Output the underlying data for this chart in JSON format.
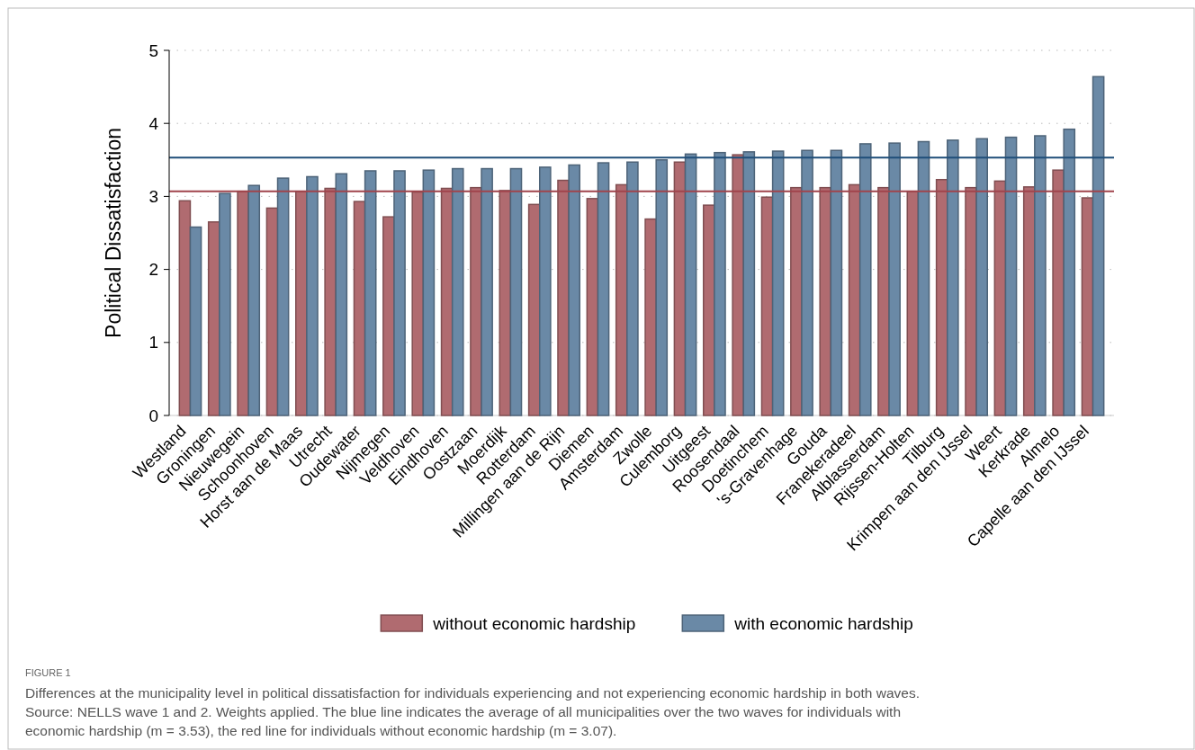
{
  "chart_data": {
    "type": "bar",
    "title": "FIGURE 1",
    "ylabel": "Political Dissatisfaction",
    "categories": [
      "Westland",
      "Groningen",
      "Nieuwegein",
      "Schoonhoven",
      "Horst aan de Maas",
      "Utrecht",
      "Oudewater",
      "Nijmegen",
      "Veldhoven",
      "Eindhoven",
      "Oostzaan",
      "Moerdijk",
      "Rotterdam",
      "Millingen aan de Rijn",
      "Diemen",
      "Amsterdam",
      "Zwolle",
      "Culemborg",
      "Uitgeest",
      "Roosendaal",
      "Doetinchem",
      "'s-Gravenhage",
      "Gouda",
      "Franekeradeel",
      "Alblasserdam",
      "Rijssen-Holten",
      "Tilburg",
      "Krimpen aan den IJssel",
      "Weert",
      "Kerkrade",
      "Almelo",
      "Capelle aan den IJssel"
    ],
    "series": [
      {
        "name": "without economic hardship",
        "color": "#b06b70",
        "values": [
          2.94,
          2.65,
          3.07,
          2.84,
          3.07,
          3.11,
          2.93,
          2.72,
          3.06,
          3.11,
          3.12,
          3.08,
          2.89,
          3.22,
          2.97,
          3.16,
          2.69,
          3.47,
          2.88,
          3.57,
          2.99,
          3.12,
          3.12,
          3.16,
          3.12,
          3.07,
          3.23,
          3.12,
          3.21,
          3.13,
          3.36,
          2.98
        ]
      },
      {
        "name": "with economic hardship",
        "color": "#6a89a6",
        "values": [
          2.58,
          3.04,
          3.15,
          3.25,
          3.27,
          3.31,
          3.35,
          3.35,
          3.36,
          3.38,
          3.38,
          3.38,
          3.4,
          3.43,
          3.46,
          3.47,
          3.5,
          3.58,
          3.6,
          3.61,
          3.62,
          3.63,
          3.63,
          3.72,
          3.73,
          3.75,
          3.77,
          3.79,
          3.81,
          3.83,
          3.92,
          4.64
        ]
      }
    ],
    "ylim": [
      0,
      5
    ],
    "yticks": [
      0,
      1,
      2,
      3,
      4,
      5
    ],
    "grid": "y",
    "legend": "bottom",
    "ref_lines": [
      {
        "axis": "y",
        "value": 3.53,
        "color": "#1f4e79"
      },
      {
        "axis": "y",
        "value": 3.07,
        "color": "#a0444c"
      }
    ],
    "annotations": [
      "Differences at the municipality level in political dissatisfaction for individuals experiencing and not experiencing economic hardship in both waves.",
      "Source: NELLS wave 1 and 2. Weights applied. The blue line indicates the average of all municipalities over the two waves for individuals with",
      "economic hardship (m = 3.53), the red line for individuals without economic hardship (m = 3.07)."
    ]
  }
}
